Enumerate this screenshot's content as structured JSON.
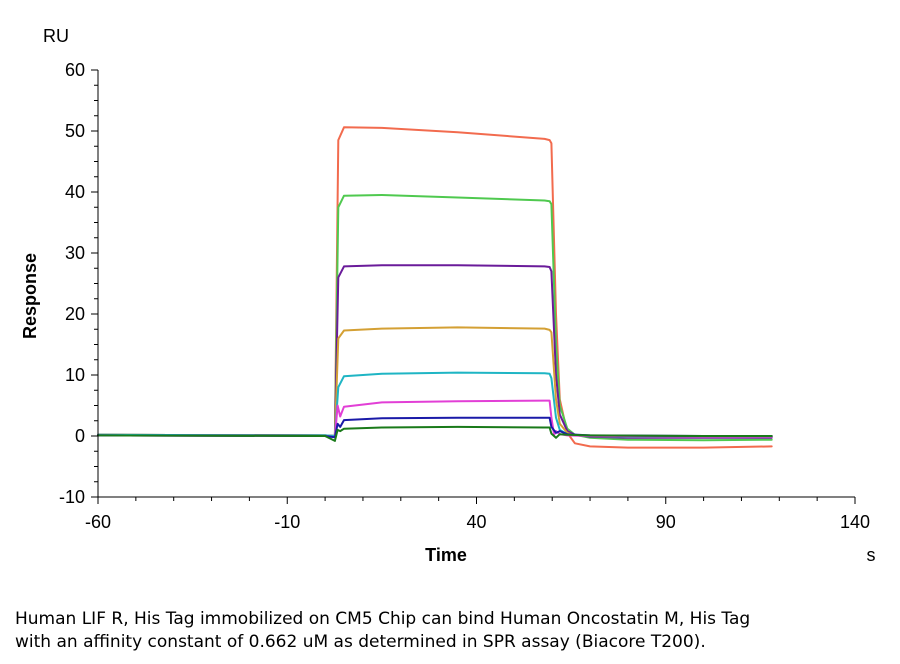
{
  "chart_data": {
    "type": "line",
    "title": "",
    "xlabel": "Time",
    "ylabel": "Response",
    "x_unit": "s",
    "y_unit": "RU",
    "xlim": [
      -60,
      140
    ],
    "ylim": [
      -10,
      60
    ],
    "x_ticks": [
      -60,
      -10,
      40,
      90,
      140
    ],
    "y_ticks": [
      -10,
      0,
      10,
      20,
      30,
      40,
      50,
      60
    ],
    "x_tick_labels": [
      "-60",
      "-10",
      "40",
      "90",
      "140"
    ],
    "y_tick_labels": [
      "-10",
      "0",
      "10",
      "20",
      "30",
      "40",
      "50",
      "60"
    ],
    "grid": false,
    "legend": "none",
    "series": [
      {
        "color": "#f26b4e",
        "points": [
          [
            -60,
            0.2
          ],
          [
            0,
            0.1
          ],
          [
            2.6,
            0.0
          ],
          [
            3.5,
            48.5
          ],
          [
            5,
            50.6
          ],
          [
            15,
            50.5
          ],
          [
            35,
            49.8
          ],
          [
            58,
            48.7
          ],
          [
            59.3,
            48.5
          ],
          [
            59.8,
            48
          ],
          [
            61,
            20
          ],
          [
            62,
            6
          ],
          [
            64,
            0.5
          ],
          [
            66,
            -1.2
          ],
          [
            70,
            -1.7
          ],
          [
            80,
            -1.9
          ],
          [
            100,
            -1.9
          ],
          [
            118,
            -1.7
          ]
        ]
      },
      {
        "color": "#4fc94f",
        "points": [
          [
            -60,
            0.2
          ],
          [
            0,
            0.1
          ],
          [
            2.6,
            0.0
          ],
          [
            3.5,
            37.5
          ],
          [
            5,
            39.4
          ],
          [
            15,
            39.5
          ],
          [
            35,
            39.1
          ],
          [
            58,
            38.6
          ],
          [
            59.3,
            38.5
          ],
          [
            59.8,
            38
          ],
          [
            61,
            15
          ],
          [
            62,
            5
          ],
          [
            64,
            1.2
          ],
          [
            66,
            0.2
          ],
          [
            70,
            -0.3
          ],
          [
            80,
            -0.6
          ],
          [
            100,
            -0.7
          ],
          [
            118,
            -0.6
          ]
        ]
      },
      {
        "color": "#6a1b9a",
        "points": [
          [
            -60,
            0.2
          ],
          [
            0,
            0.1
          ],
          [
            2.6,
            0.0
          ],
          [
            3.5,
            26
          ],
          [
            5,
            27.8
          ],
          [
            15,
            28.0
          ],
          [
            35,
            28.0
          ],
          [
            58,
            27.8
          ],
          [
            59.3,
            27.7
          ],
          [
            59.8,
            27
          ],
          [
            61,
            10
          ],
          [
            62,
            3.5
          ],
          [
            64,
            0.8
          ],
          [
            66,
            0.2
          ],
          [
            70,
            -0.1
          ],
          [
            80,
            -0.3
          ],
          [
            100,
            -0.3
          ],
          [
            118,
            -0.3
          ]
        ]
      },
      {
        "color": "#d4a034",
        "points": [
          [
            -60,
            0.2
          ],
          [
            0,
            0.1
          ],
          [
            2.6,
            0.0
          ],
          [
            3.5,
            16
          ],
          [
            5,
            17.3
          ],
          [
            15,
            17.6
          ],
          [
            35,
            17.8
          ],
          [
            58,
            17.6
          ],
          [
            59.3,
            17.4
          ],
          [
            59.8,
            17
          ],
          [
            61,
            6
          ],
          [
            62,
            2
          ],
          [
            64,
            0.5
          ],
          [
            66,
            0.1
          ],
          [
            70,
            0.0
          ],
          [
            80,
            -0.1
          ],
          [
            100,
            -0.1
          ],
          [
            118,
            -0.1
          ]
        ]
      },
      {
        "color": "#1fb5c4",
        "points": [
          [
            -60,
            0.2
          ],
          [
            0,
            0.1
          ],
          [
            2.6,
            0.0
          ],
          [
            3.5,
            8
          ],
          [
            5,
            9.8
          ],
          [
            15,
            10.2
          ],
          [
            35,
            10.4
          ],
          [
            58,
            10.3
          ],
          [
            59.3,
            10.2
          ],
          [
            59.8,
            9.5
          ],
          [
            61,
            3
          ],
          [
            62,
            1
          ],
          [
            64,
            0.3
          ],
          [
            66,
            0.1
          ],
          [
            70,
            0.0
          ],
          [
            80,
            -0.1
          ],
          [
            100,
            -0.1
          ],
          [
            118,
            -0.1
          ]
        ]
      },
      {
        "color": "#e23fd6",
        "points": [
          [
            -60,
            0.1
          ],
          [
            0,
            0.0
          ],
          [
            2.6,
            -0.2
          ],
          [
            3.3,
            5
          ],
          [
            4,
            3.2
          ],
          [
            5,
            4.8
          ],
          [
            15,
            5.5
          ],
          [
            35,
            5.7
          ],
          [
            58,
            5.8
          ],
          [
            59.3,
            5.8
          ],
          [
            59.8,
            3
          ],
          [
            60.5,
            0.2
          ],
          [
            61,
            0.8
          ],
          [
            62,
            0.3
          ],
          [
            64,
            0.1
          ],
          [
            70,
            0.0
          ],
          [
            100,
            -0.1
          ],
          [
            118,
            -0.1
          ]
        ]
      },
      {
        "color": "#1a1aa8",
        "points": [
          [
            -60,
            0.1
          ],
          [
            0,
            0.0
          ],
          [
            2.6,
            -0.2
          ],
          [
            3.3,
            2
          ],
          [
            4,
            1.5
          ],
          [
            5,
            2.6
          ],
          [
            15,
            2.9
          ],
          [
            35,
            3.0
          ],
          [
            58,
            3.0
          ],
          [
            59.3,
            3.0
          ],
          [
            59.8,
            1.5
          ],
          [
            61,
            0.5
          ],
          [
            62,
            0.8
          ],
          [
            64,
            0.3
          ],
          [
            70,
            0.1
          ],
          [
            100,
            0.0
          ],
          [
            118,
            0.0
          ]
        ]
      },
      {
        "color": "#1a7a1a",
        "points": [
          [
            -60,
            0.1
          ],
          [
            0,
            0.0
          ],
          [
            2.6,
            -0.8
          ],
          [
            3.3,
            1
          ],
          [
            4,
            0.8
          ],
          [
            5,
            1.2
          ],
          [
            15,
            1.4
          ],
          [
            35,
            1.5
          ],
          [
            58,
            1.4
          ],
          [
            59.3,
            1.4
          ],
          [
            59.8,
            0.4
          ],
          [
            61,
            -0.3
          ],
          [
            62,
            0.3
          ],
          [
            64,
            0.2
          ],
          [
            70,
            0.1
          ],
          [
            100,
            0.0
          ],
          [
            118,
            0.0
          ]
        ]
      }
    ]
  },
  "caption": {
    "line1": "Human LIF R, His Tag immobilized on CM5 Chip can bind Human Oncostatin M, His Tag",
    "line2": "with an affinity constant of 0.662 uM as determined in SPR assay (Biacore T200)."
  }
}
